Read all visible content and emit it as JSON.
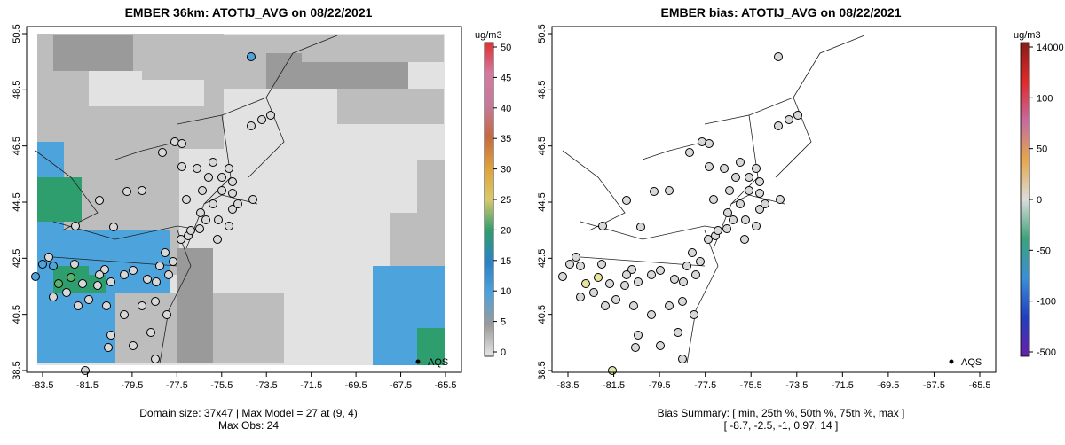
{
  "left": {
    "title": "EMBER 36km: ATOTIJ_AVG on 08/22/2021",
    "footer_line1": "Domain size: 37x47 | Max Model = 27 at (9, 4)",
    "footer_line2": "Max Obs: 24",
    "colorbar": {
      "unit": "ug/m3",
      "ticks": [
        "0",
        "5",
        "10",
        "15",
        "20",
        "25",
        "30",
        "35",
        "40",
        "45",
        "50"
      ]
    },
    "legend_label": "AQS"
  },
  "right": {
    "title": "EMBER bias: ATOTIJ_AVG on 08/22/2021",
    "footer_line1": "Bias Summary: [ min, 25th %, 50th %, 75th %, max ]",
    "footer_line2": "[ -8.7,   -2.5,   -1,   0.97,   14 ]",
    "colorbar": {
      "unit": "ug/m3",
      "ticks": [
        "-500",
        "-100",
        "-50",
        "0",
        "50",
        "100",
        "14000"
      ]
    },
    "legend_label": "AQS"
  },
  "axes": {
    "x_ticks": [
      "-83.5",
      "-81.5",
      "-79.5",
      "-77.5",
      "-75.5",
      "-73.5",
      "-71.5",
      "-69.5",
      "-67.5",
      "-65.5"
    ],
    "y_ticks": [
      "38.5",
      "40.5",
      "42.5",
      "44.5",
      "46.5",
      "48.5",
      "50.5"
    ],
    "xlim": [
      -84.5,
      -64.5
    ],
    "ylim": [
      38.5,
      50.5
    ]
  },
  "colors": {
    "model_bg_light": "#e2e2e2",
    "model_mid": "#bdbdbd",
    "model_dark": "#9a9a9a",
    "model_blue": "#4da3dc",
    "model_green": "#2e9e6e",
    "station_fill": "#d8d8d8"
  }
}
